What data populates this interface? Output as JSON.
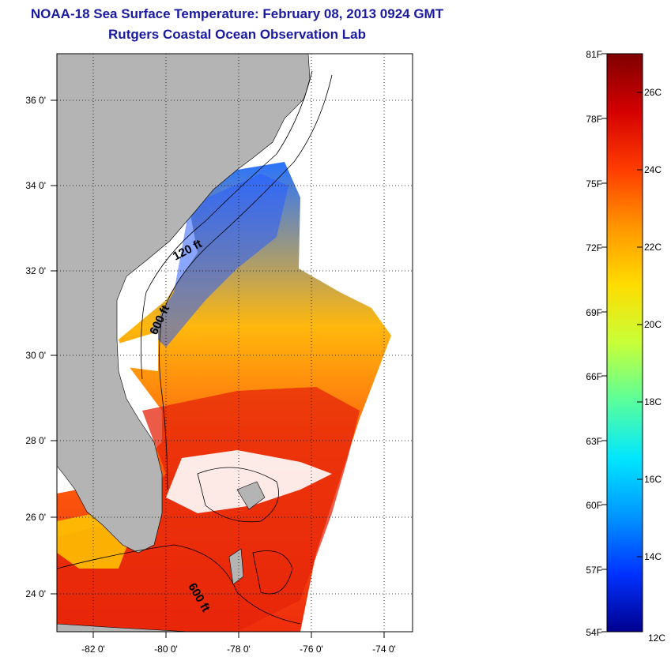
{
  "header": {
    "title": "NOAA-18 Sea Surface Temperature:  February 08, 2013 0924 GMT",
    "subtitle": "Rutgers Coastal Ocean Observation Lab"
  },
  "map": {
    "lon_labels": [
      "-82 0'",
      "-80 0'",
      "-78 0'",
      "-76 0'",
      "-74 0'"
    ],
    "lat_labels": [
      "36 0'",
      "34 0'",
      "32 0'",
      "30 0'",
      "28 0'",
      "26 0'",
      "24 0'"
    ],
    "contour_labels": [
      "120 ft",
      "600 ft",
      "600 ft"
    ],
    "colors": {
      "land": "#b4b4b4",
      "cloud": "#ffffff"
    }
  },
  "colorbar": {
    "f_labels": [
      "81F",
      "78F",
      "75F",
      "72F",
      "69F",
      "66F",
      "63F",
      "60F",
      "57F",
      "54F"
    ],
    "c_labels": [
      "26C",
      "24C",
      "22C",
      "20C",
      "18C",
      "16C",
      "14C",
      "12C"
    ],
    "gradient": [
      "#7f0000",
      "#d40000",
      "#ff3c00",
      "#ff9600",
      "#ffdc00",
      "#c8ff37",
      "#5aff9b",
      "#00e6ff",
      "#0096ff",
      "#0032ff",
      "#00008f"
    ]
  }
}
